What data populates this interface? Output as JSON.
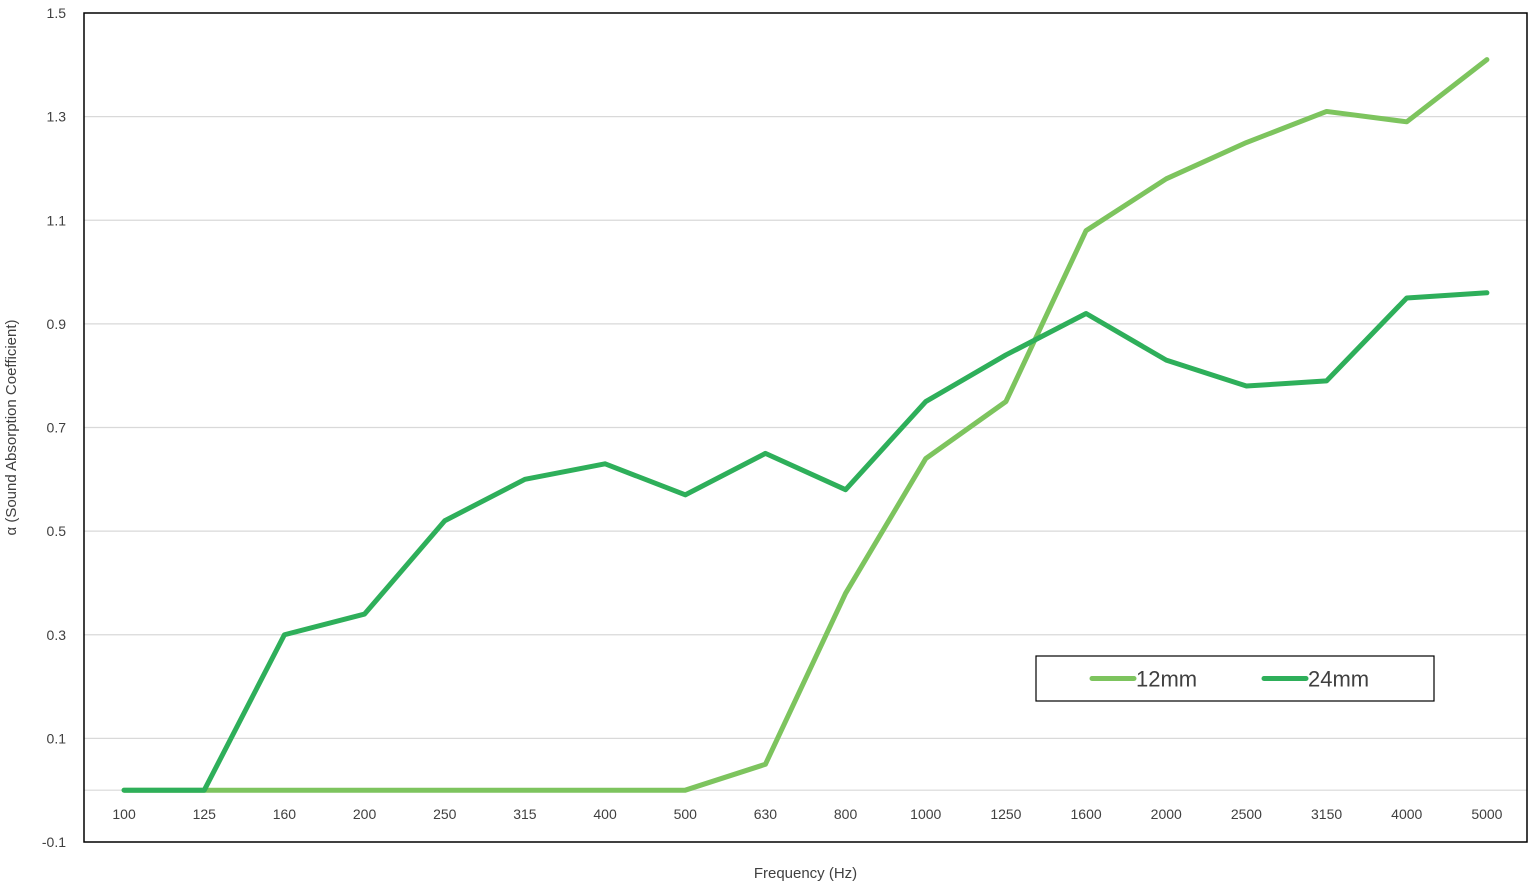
{
  "chart_data": {
    "type": "line",
    "title": "",
    "xlabel": "Frequency (Hz)",
    "ylabel": "α (Sound Absorption Coefficient)",
    "ylim": [
      -0.1,
      1.5
    ],
    "yticks": [
      "1.5",
      "1.3",
      "1.1",
      "0.9",
      "0.7",
      "0.5",
      "0.3",
      "0.1",
      "-0.1"
    ],
    "categories": [
      "100",
      "125",
      "160",
      "200",
      "250",
      "315",
      "400",
      "500",
      "630",
      "800",
      "1000",
      "1250",
      "1600",
      "2000",
      "2500",
      "3150",
      "4000",
      "5000"
    ],
    "grid": "horizontal",
    "legend_position": "bottom-right",
    "series": [
      {
        "name": "12mm",
        "color": "#7dc45e",
        "values": [
          0,
          0,
          0,
          0,
          0,
          0,
          0,
          0,
          0.05,
          0.38,
          0.64,
          0.75,
          1.08,
          1.18,
          1.25,
          1.31,
          1.29,
          1.41
        ]
      },
      {
        "name": "24mm",
        "color": "#2eaf5a",
        "values": [
          0,
          0,
          0.3,
          0.34,
          0.52,
          0.6,
          0.63,
          0.57,
          0.65,
          0.58,
          0.75,
          0.84,
          0.92,
          0.83,
          0.78,
          0.79,
          0.95,
          0.96
        ]
      }
    ]
  }
}
